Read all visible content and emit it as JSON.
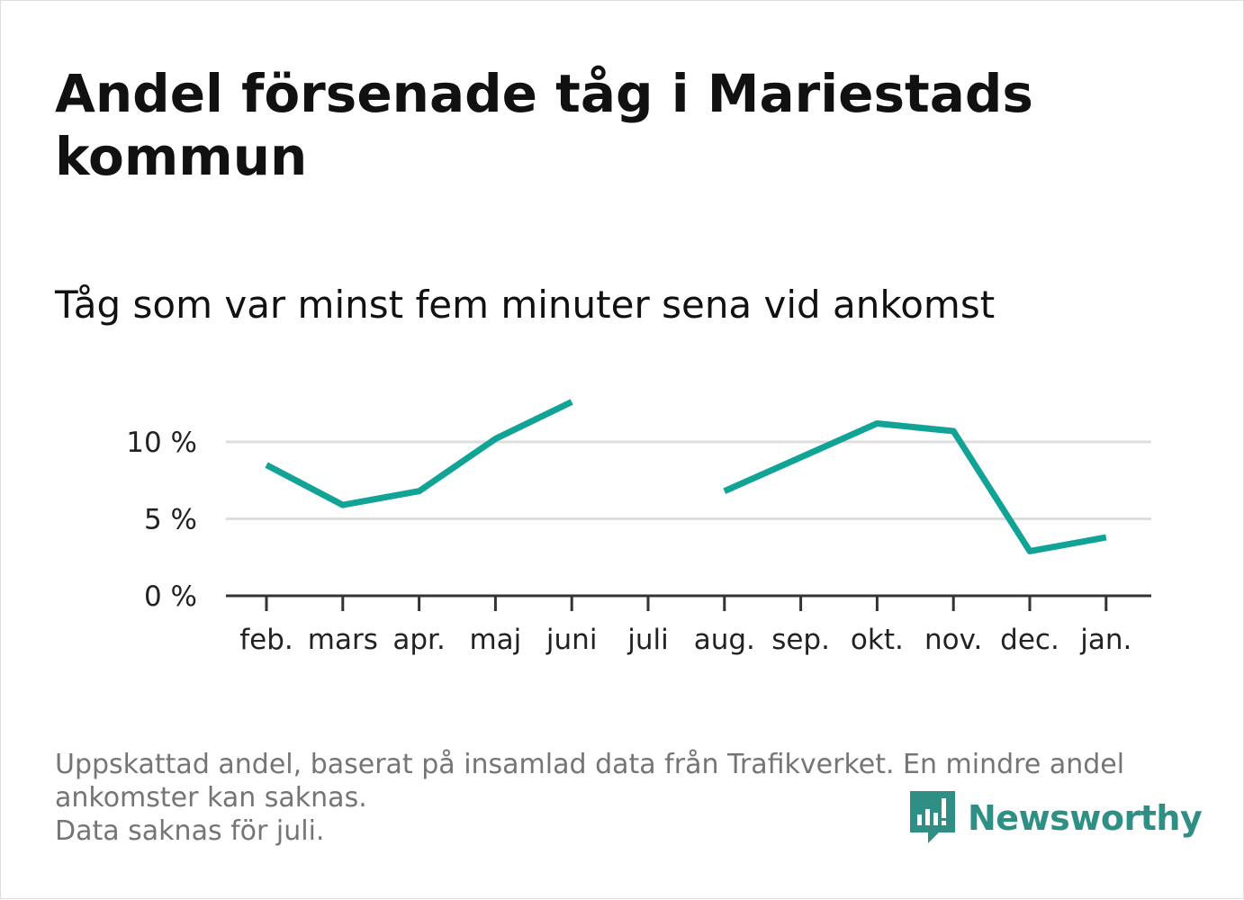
{
  "title": "Andel försenade tåg i Mariestads kommun",
  "subtitle": "Tåg som var minst fem minuter sena vid ankomst",
  "footnote": {
    "line1": "Uppskattad andel, baserat på insamlad data från Trafikverket. En mindre andel ankomster kan saknas.",
    "line2": "Data saknas för juli."
  },
  "brand": {
    "name": "Newsworthy",
    "icon": "newsworthy-logo-icon",
    "color": "#2f8f85"
  },
  "colors": {
    "line": "#12a397",
    "grid": "#dddddd",
    "axis": "#333333"
  },
  "chart_data": {
    "type": "line",
    "categories": [
      "feb.",
      "mars",
      "apr.",
      "maj",
      "juni",
      "juli",
      "aug.",
      "sep.",
      "okt.",
      "nov.",
      "dec.",
      "jan."
    ],
    "series": [
      {
        "values": [
          8.5,
          5.9,
          6.8,
          10.2,
          12.6,
          null,
          6.8,
          9.0,
          11.2,
          10.7,
          2.9,
          3.8
        ]
      }
    ],
    "y_ticks": [
      {
        "value": 0,
        "label": "0 %"
      },
      {
        "value": 5,
        "label": "5 %"
      },
      {
        "value": 10,
        "label": "10 %"
      }
    ],
    "ylim": [
      0,
      13
    ],
    "grid": true,
    "legend": "none"
  }
}
